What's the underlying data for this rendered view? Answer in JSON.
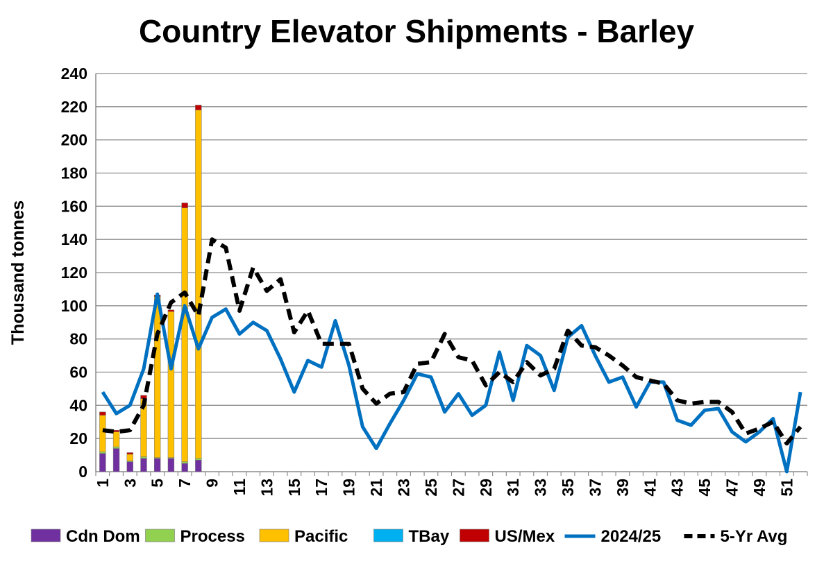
{
  "chart_data": {
    "type": "bar",
    "title": "Country Elevator Shipments - Barley",
    "xlabel": "",
    "ylabel": "Thousand tonnes",
    "ylim": [
      0,
      240
    ],
    "y_ticks": [
      "0",
      "20",
      "40",
      "60",
      "80",
      "100",
      "120",
      "140",
      "160",
      "180",
      "200",
      "220",
      "240"
    ],
    "x_tick_labels": [
      "1",
      "3",
      "5",
      "7",
      "9",
      "11",
      "13",
      "15",
      "17",
      "19",
      "21",
      "23",
      "25",
      "27",
      "29",
      "31",
      "33",
      "35",
      "37",
      "39",
      "41",
      "43",
      "45",
      "47",
      "49",
      "51"
    ],
    "weeks": [
      1,
      2,
      3,
      4,
      5,
      6,
      7,
      8,
      9,
      10,
      11,
      12,
      13,
      14,
      15,
      16,
      17,
      18,
      19,
      20,
      21,
      22,
      23,
      24,
      25,
      26,
      27,
      28,
      29,
      30,
      31,
      32,
      33,
      34,
      35,
      36,
      37,
      38,
      39,
      40,
      41,
      42,
      43,
      44,
      45,
      46,
      47,
      48,
      49,
      50,
      51,
      52
    ],
    "grid": true,
    "legend_position": "bottom",
    "stacked_series": [
      {
        "name": "Cdn Dom",
        "color": "#7030A0",
        "values": [
          11,
          14,
          6,
          8,
          8,
          8,
          5,
          7
        ]
      },
      {
        "name": "Process",
        "color": "#92D050",
        "values": [
          1,
          1,
          0.5,
          1,
          0.5,
          0.5,
          1,
          1
        ]
      },
      {
        "name": "Pacific",
        "color": "#FFC000",
        "values": [
          22,
          9,
          4,
          35,
          97,
          88,
          153,
          210
        ]
      },
      {
        "name": "TBay",
        "color": "#00B0F0",
        "values": [
          0,
          0,
          0,
          0,
          0,
          0,
          0,
          0
        ]
      },
      {
        "name": "US/Mex",
        "color": "#C00000",
        "values": [
          2,
          1,
          1,
          2,
          1,
          1,
          3,
          3
        ]
      }
    ],
    "line_series": [
      {
        "name": "2024/25",
        "color": "#0070C0",
        "dashed": false,
        "values": [
          48,
          35,
          40,
          62,
          107,
          62,
          100,
          74,
          93,
          98,
          83,
          90,
          85,
          68,
          48,
          67,
          63,
          91,
          64,
          27,
          14,
          29,
          43,
          59,
          57,
          36,
          47,
          34,
          40,
          72,
          43,
          76,
          70,
          49,
          81,
          88,
          70,
          54,
          57,
          39,
          54,
          54,
          31,
          28,
          37,
          38,
          24,
          18,
          24,
          32,
          0,
          48
        ]
      },
      {
        "name": "5-Yr Avg",
        "color": "#000000",
        "dashed": true,
        "values": [
          25,
          24,
          25,
          40,
          83,
          102,
          108,
          94,
          140,
          135,
          97,
          123,
          109,
          116,
          84,
          97,
          77,
          77,
          77,
          50,
          41,
          47,
          48,
          65,
          66,
          83,
          69,
          67,
          52,
          60,
          54,
          66,
          58,
          62,
          85,
          76,
          75,
          70,
          64,
          57,
          55,
          53,
          43,
          41,
          42,
          42,
          36,
          23,
          26,
          30,
          17,
          27
        ]
      }
    ]
  }
}
